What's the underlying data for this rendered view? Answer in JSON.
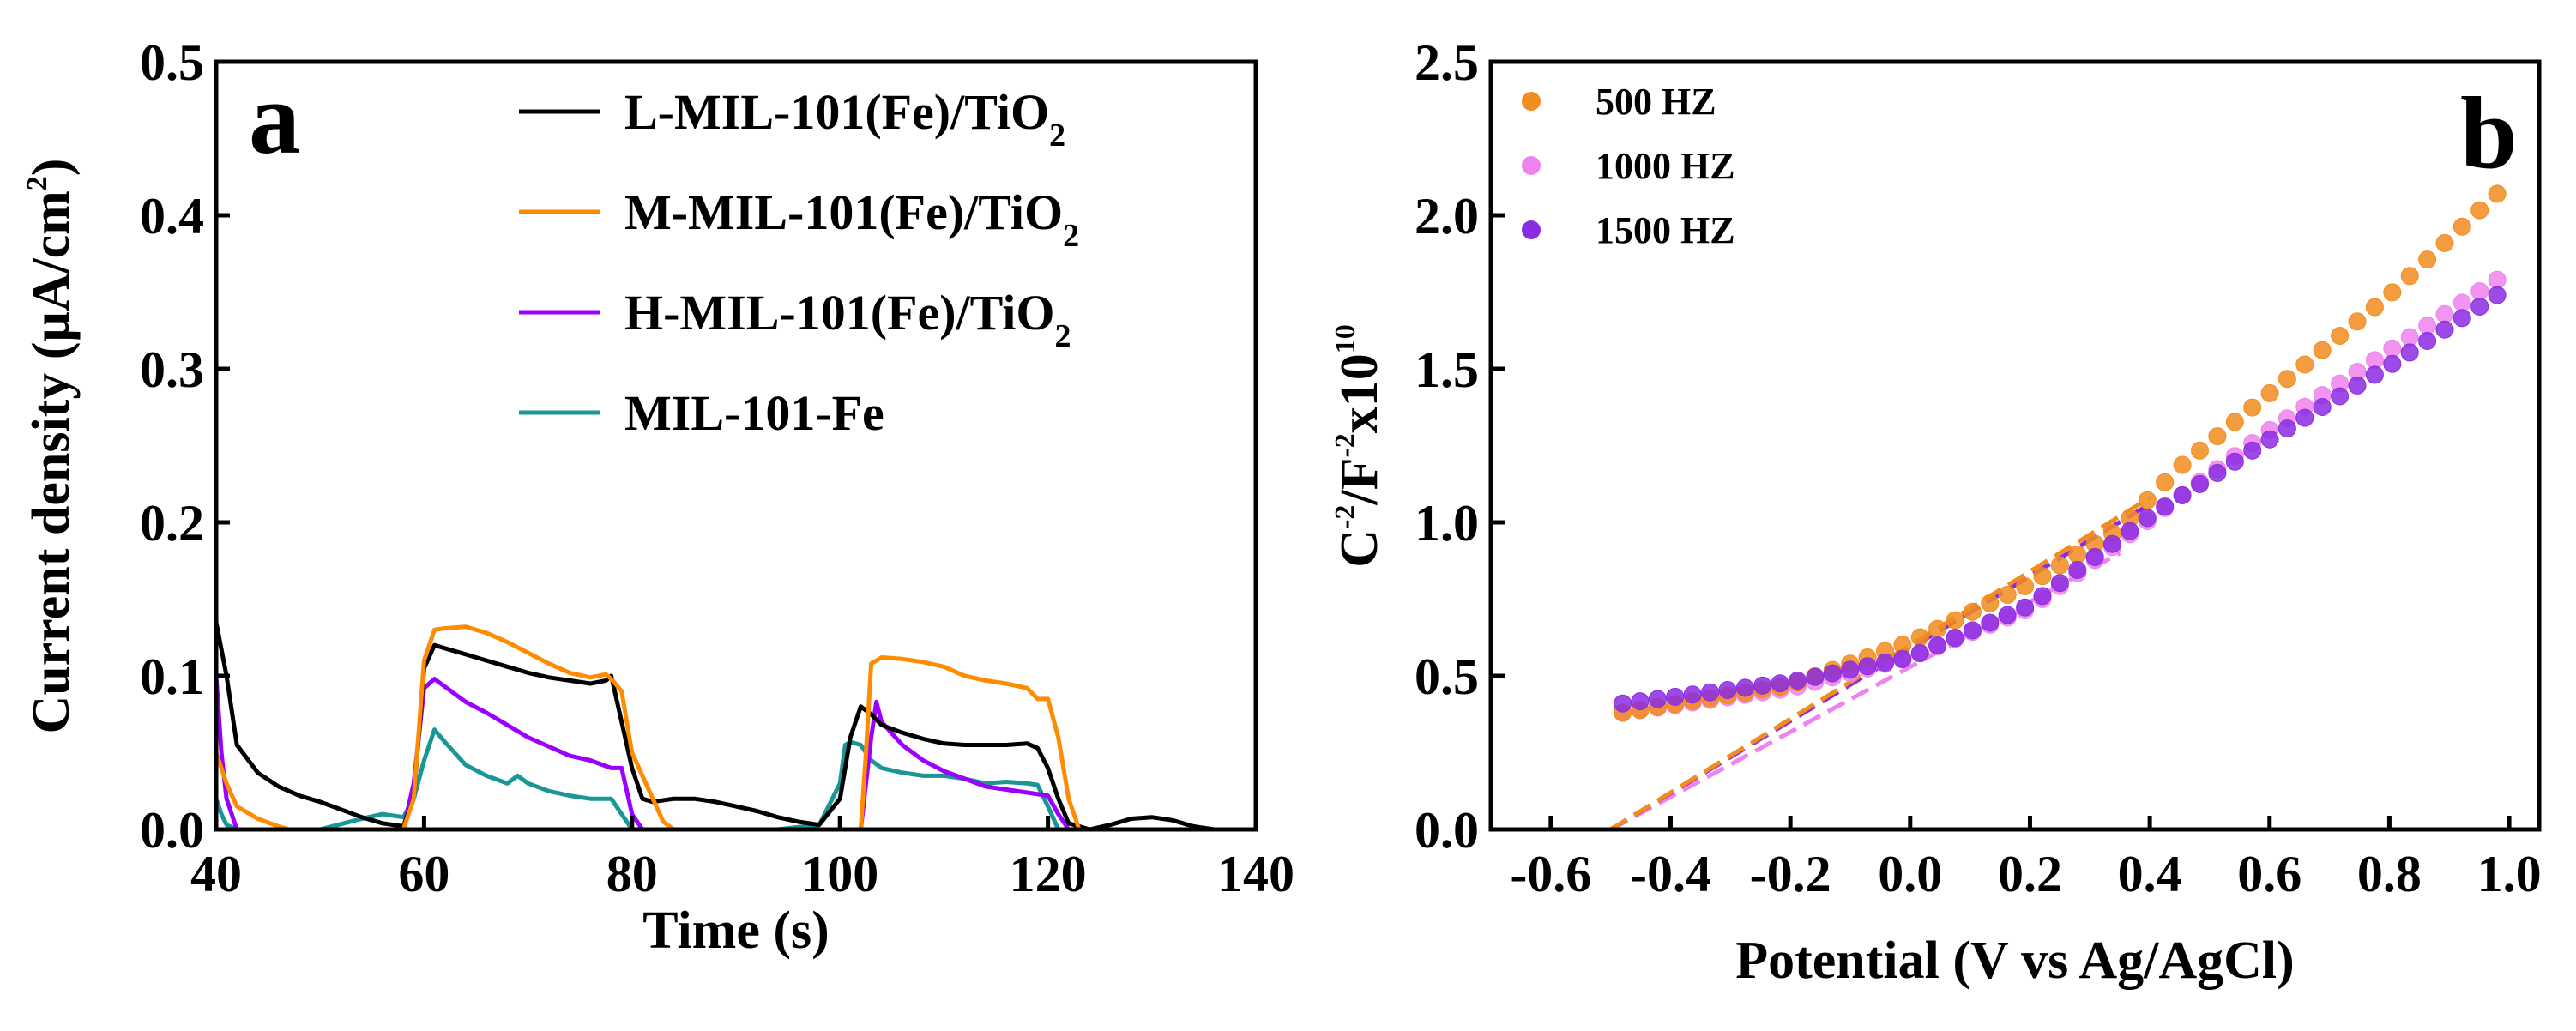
{
  "chart_data": [
    {
      "panel": "a",
      "type": "line",
      "xlabel": "Time (s)",
      "ylabel": "Current density",
      "ylabel_unit_base": "(μA/cm",
      "ylabel_unit_sup": "2",
      "ylabel_unit_end": ")",
      "xlim": [
        40,
        140
      ],
      "ylim": [
        0.0,
        0.5
      ],
      "xticks": [
        40,
        60,
        80,
        100,
        120,
        140
      ],
      "yticks": [
        0.0,
        0.1,
        0.2,
        0.3,
        0.4,
        0.5
      ],
      "xtick_labels": [
        "40",
        "60",
        "80",
        "100",
        "120",
        "140"
      ],
      "ytick_labels": [
        "0.0",
        "0.1",
        "0.2",
        "0.3",
        "0.4",
        "0.5"
      ],
      "legend_position": "top-right",
      "series": [
        {
          "name": "L-MIL-101(Fe)/TiO2",
          "label_base": "L-MIL-101(Fe)/TiO",
          "label_sub": "2",
          "color": "#000000",
          "x": [
            40,
            41,
            42,
            44,
            46,
            48,
            50,
            52,
            54,
            56,
            58,
            59,
            60,
            61,
            62,
            64,
            66,
            68,
            70,
            72,
            74,
            76,
            77.5,
            78,
            79,
            80,
            81,
            82,
            84,
            86,
            88,
            90,
            92,
            94,
            96,
            98,
            100,
            101,
            102,
            103,
            104,
            106,
            108,
            110,
            112,
            114,
            116,
            118,
            119,
            120,
            121,
            122,
            124,
            126,
            128,
            130,
            132,
            134,
            136
          ],
          "y": [
            0.135,
            0.1,
            0.055,
            0.037,
            0.028,
            0.022,
            0.018,
            0.013,
            0.008,
            0.004,
            0.002,
            0.02,
            0.105,
            0.12,
            0.118,
            0.114,
            0.11,
            0.106,
            0.102,
            0.099,
            0.097,
            0.095,
            0.097,
            0.1,
            0.07,
            0.04,
            0.02,
            0.018,
            0.02,
            0.02,
            0.018,
            0.015,
            0.012,
            0.008,
            0.005,
            0.003,
            0.02,
            0.06,
            0.08,
            0.075,
            0.068,
            0.063,
            0.059,
            0.056,
            0.055,
            0.055,
            0.055,
            0.056,
            0.053,
            0.04,
            0.02,
            0.004,
            0.0,
            0.003,
            0.007,
            0.008,
            0.006,
            0.002,
            0.0
          ]
        },
        {
          "name": "M-MIL-101(Fe)/TiO2",
          "label_base": "M-MIL-101(Fe)/TiO",
          "label_sub": "2",
          "color": "#FF8C00",
          "x": [
            40,
            41,
            42,
            44,
            46,
            47,
            48,
            58,
            59,
            60,
            61,
            62,
            64,
            66,
            68,
            70,
            72,
            74,
            76,
            77.5,
            78,
            79,
            80,
            82,
            83,
            84,
            102,
            102.5,
            103,
            104,
            106,
            108,
            110,
            112,
            114,
            116,
            118,
            119,
            120,
            121,
            122,
            123
          ],
          "y": [
            0.05,
            0.03,
            0.015,
            0.007,
            0.002,
            0.0,
            0.0,
            0.0,
            0.02,
            0.11,
            0.13,
            0.131,
            0.132,
            0.128,
            0.122,
            0.115,
            0.108,
            0.102,
            0.099,
            0.101,
            0.098,
            0.09,
            0.05,
            0.02,
            0.005,
            0.0,
            0.0,
            0.05,
            0.108,
            0.112,
            0.111,
            0.109,
            0.106,
            0.1,
            0.097,
            0.095,
            0.092,
            0.085,
            0.085,
            0.06,
            0.02,
            0.0
          ]
        },
        {
          "name": "H-MIL-101(Fe)/TiO2",
          "label_base": "H-MIL-101(Fe)/TiO",
          "label_sub": "2",
          "color": "#9B00FF",
          "x": [
            40,
            40.5,
            41,
            42,
            58,
            59,
            60,
            61,
            62,
            64,
            66,
            68,
            70,
            72,
            74,
            76,
            78,
            79,
            80,
            81,
            102,
            103,
            103.5,
            104,
            106,
            108,
            110,
            112,
            114,
            116,
            118,
            120,
            121,
            122,
            123
          ],
          "y": [
            0.1,
            0.05,
            0.02,
            0.0,
            0.0,
            0.03,
            0.092,
            0.098,
            0.093,
            0.083,
            0.076,
            0.068,
            0.06,
            0.054,
            0.048,
            0.045,
            0.04,
            0.04,
            0.01,
            0.0,
            0.0,
            0.06,
            0.083,
            0.07,
            0.055,
            0.045,
            0.038,
            0.033,
            0.028,
            0.026,
            0.024,
            0.022,
            0.01,
            0.0,
            0.0
          ]
        },
        {
          "name": "MIL-101-Fe",
          "label_base": "MIL-101-Fe",
          "label_sub": "",
          "color": "#1A9696",
          "x": [
            40,
            40.5,
            41,
            42,
            50,
            54,
            56,
            58,
            59,
            60,
            61,
            62,
            64,
            66,
            68,
            69,
            70,
            72,
            74,
            76,
            78,
            79,
            80,
            94,
            98,
            100,
            100.5,
            101,
            102,
            103,
            104,
            106,
            108,
            110,
            112,
            114,
            116,
            118,
            119,
            120,
            121
          ],
          "y": [
            0.02,
            0.01,
            0.003,
            0.0,
            0.0,
            0.007,
            0.01,
            0.008,
            0.02,
            0.045,
            0.065,
            0.057,
            0.042,
            0.035,
            0.03,
            0.035,
            0.03,
            0.025,
            0.022,
            0.02,
            0.02,
            0.01,
            0.0,
            0.0,
            0.003,
            0.03,
            0.055,
            0.057,
            0.055,
            0.045,
            0.04,
            0.037,
            0.035,
            0.035,
            0.033,
            0.03,
            0.031,
            0.03,
            0.029,
            0.015,
            0.0
          ]
        }
      ]
    },
    {
      "panel": "b",
      "type": "scatter",
      "xlabel": "Potential (V vs Ag/AgCl)",
      "ylabel_base": "C",
      "ylabel_sup1": "-2",
      "ylabel_mid": "/F",
      "ylabel_sup2": "-2",
      "ylabel_tail": "x10",
      "ylabel_sup3": "10",
      "xlim": [
        -0.7,
        1.05
      ],
      "ylim": [
        0.0,
        2.5
      ],
      "xticks": [
        -0.6,
        -0.4,
        -0.2,
        0.0,
        0.2,
        0.4,
        0.6,
        0.8,
        1.0
      ],
      "yticks": [
        0.0,
        0.5,
        1.0,
        1.5,
        2.0,
        2.5
      ],
      "xtick_labels": [
        "-0.6",
        "-0.4",
        "-0.2",
        "0.0",
        "0.2",
        "0.4",
        "0.6",
        "0.8",
        "1.0"
      ],
      "ytick_labels": [
        "0.0",
        "0.5",
        "1.0",
        "1.5",
        "2.0",
        "2.5"
      ],
      "legend_position": "top-left",
      "series": [
        {
          "name": "500 HZ",
          "color": "#F28C1E",
          "x_range": [
            -0.48,
            0.98
          ],
          "points": 51,
          "anchor_x": [
            -0.48,
            -0.2,
            0.0,
            0.2,
            0.35,
            0.45,
            0.6,
            0.8,
            0.98
          ],
          "anchor_y": [
            0.38,
            0.47,
            0.61,
            0.8,
            0.98,
            1.18,
            1.42,
            1.74,
            2.07
          ],
          "fit_line": {
            "x": [
              -0.5,
              0.4
            ],
            "y": [
              0.0,
              1.08
            ]
          }
        },
        {
          "name": "1000 HZ",
          "color": "#EE82EE",
          "x_range": [
            -0.48,
            0.98
          ],
          "points": 51,
          "anchor_x": [
            -0.48,
            -0.2,
            0.0,
            0.2,
            0.4,
            0.6,
            0.8,
            0.98
          ],
          "anchor_y": [
            0.38,
            0.46,
            0.56,
            0.72,
            1.01,
            1.3,
            1.56,
            1.79
          ],
          "fit_line": {
            "x": [
              -0.5,
              0.35
            ],
            "y": [
              0.0,
              0.9
            ]
          }
        },
        {
          "name": "1500 HZ",
          "color": "#8B2BE2",
          "x_range": [
            -0.48,
            0.98
          ],
          "points": 51,
          "anchor_x": [
            -0.48,
            -0.2,
            0.0,
            0.2,
            0.4,
            0.6,
            0.8,
            0.98
          ],
          "anchor_y": [
            0.41,
            0.48,
            0.56,
            0.73,
            1.02,
            1.27,
            1.51,
            1.74
          ],
          "fit_line": {
            "x": [
              -0.5,
              0.4
            ],
            "y": [
              0.0,
              1.06
            ]
          }
        }
      ]
    }
  ]
}
